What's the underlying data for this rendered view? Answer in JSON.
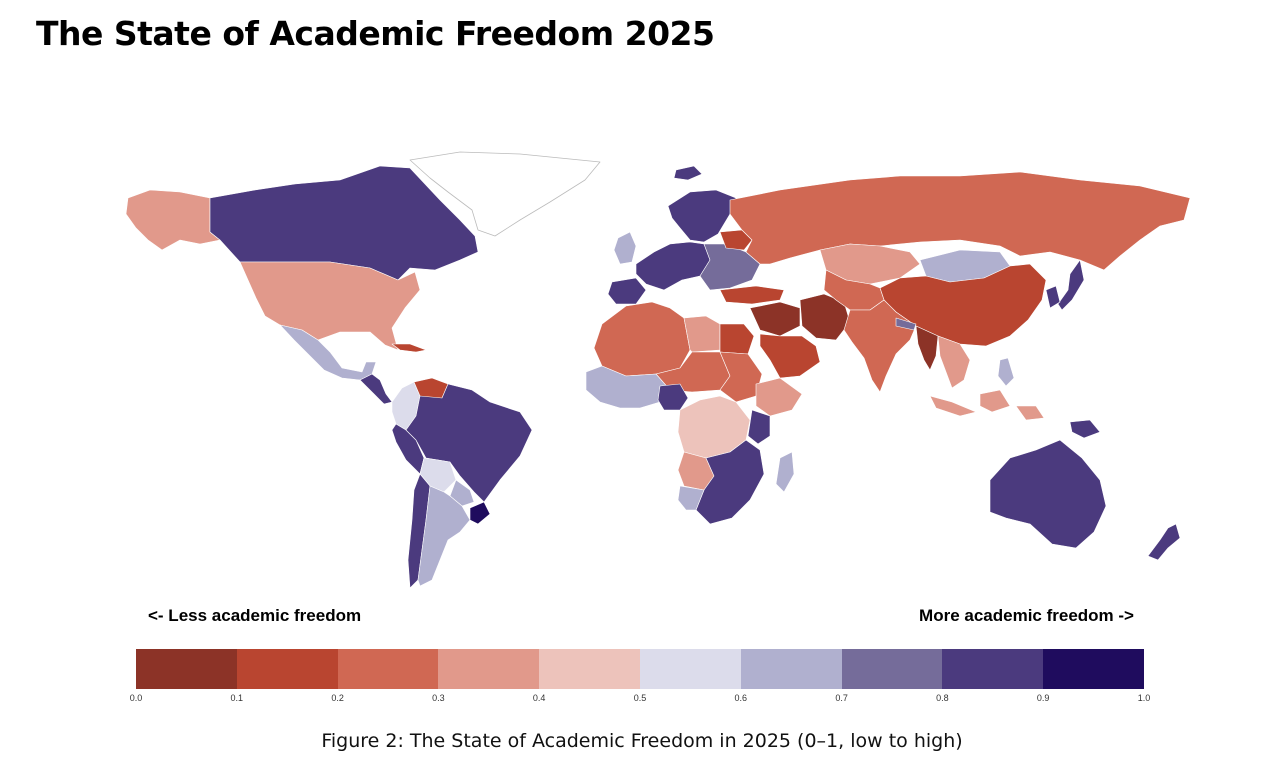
{
  "title": "The State of Academic Freedom 2025",
  "legend": {
    "left_label": "<- Less academic freedom",
    "right_label": "More academic freedom ->",
    "bins": [
      {
        "from": 0.0,
        "to": 0.1,
        "color": "#8c3327"
      },
      {
        "from": 0.1,
        "to": 0.2,
        "color": "#b94530"
      },
      {
        "from": 0.2,
        "to": 0.3,
        "color": "#d06853"
      },
      {
        "from": 0.3,
        "to": 0.4,
        "color": "#e1998b"
      },
      {
        "from": 0.4,
        "to": 0.5,
        "color": "#edc3bb"
      },
      {
        "from": 0.5,
        "to": 0.6,
        "color": "#dcdceb"
      },
      {
        "from": 0.6,
        "to": 0.7,
        "color": "#b0b0cf"
      },
      {
        "from": 0.7,
        "to": 0.8,
        "color": "#756c9a"
      },
      {
        "from": 0.8,
        "to": 0.9,
        "color": "#4b3a7e"
      },
      {
        "from": 0.9,
        "to": 1.0,
        "color": "#1f0c5e"
      }
    ],
    "ticks": [
      "0.0",
      "0.1",
      "0.2",
      "0.3",
      "0.4",
      "0.5",
      "0.6",
      "0.7",
      "0.8",
      "0.9",
      "1.0"
    ]
  },
  "caption": "Figure 2: The State of Academic Freedom in 2025 (0–1, low to high)",
  "regions": [
    {
      "name": "canada",
      "color": "#4b3a7e"
    },
    {
      "name": "alaska",
      "color": "#e1998b"
    },
    {
      "name": "usa",
      "color": "#e1998b"
    },
    {
      "name": "greenland",
      "color": "#ffffff"
    },
    {
      "name": "mexico",
      "color": "#b0b0cf"
    },
    {
      "name": "central-america",
      "color": "#4b3a7e"
    },
    {
      "name": "cuba",
      "color": "#b94530"
    },
    {
      "name": "venezuela",
      "color": "#b94530"
    },
    {
      "name": "colombia",
      "color": "#dcdceb"
    },
    {
      "name": "brazil",
      "color": "#4b3a7e"
    },
    {
      "name": "peru",
      "color": "#4b3a7e"
    },
    {
      "name": "bolivia",
      "color": "#dcdceb"
    },
    {
      "name": "paraguay",
      "color": "#b0b0cf"
    },
    {
      "name": "chile",
      "color": "#4b3a7e"
    },
    {
      "name": "argentina",
      "color": "#b0b0cf"
    },
    {
      "name": "uruguay",
      "color": "#1f0c5e"
    },
    {
      "name": "iceland",
      "color": "#4b3a7e"
    },
    {
      "name": "uk-ireland",
      "color": "#b0b0cf"
    },
    {
      "name": "scandinavia",
      "color": "#4b3a7e"
    },
    {
      "name": "western-europe",
      "color": "#4b3a7e"
    },
    {
      "name": "iberia",
      "color": "#4b3a7e"
    },
    {
      "name": "eastern-europe",
      "color": "#756c9a"
    },
    {
      "name": "belarus",
      "color": "#b94530"
    },
    {
      "name": "russia",
      "color": "#d06853"
    },
    {
      "name": "kazakhstan",
      "color": "#e1998b"
    },
    {
      "name": "mongolia",
      "color": "#b0b0cf"
    },
    {
      "name": "china",
      "color": "#b94530"
    },
    {
      "name": "korea-japan",
      "color": "#4b3a7e"
    },
    {
      "name": "turkey",
      "color": "#b94530"
    },
    {
      "name": "middle-east",
      "color": "#8c3327"
    },
    {
      "name": "iran",
      "color": "#8c3327"
    },
    {
      "name": "saudi-arabia",
      "color": "#b94530"
    },
    {
      "name": "central-asia",
      "color": "#d06853"
    },
    {
      "name": "india",
      "color": "#d06853"
    },
    {
      "name": "nepal",
      "color": "#756c9a"
    },
    {
      "name": "myanmar",
      "color": "#8c3327"
    },
    {
      "name": "southeast-asia",
      "color": "#e1998b"
    },
    {
      "name": "indonesia",
      "color": "#e1998b"
    },
    {
      "name": "philippines",
      "color": "#b0b0cf"
    },
    {
      "name": "png",
      "color": "#4b3a7e"
    },
    {
      "name": "australia",
      "color": "#4b3a7e"
    },
    {
      "name": "new-zealand",
      "color": "#4b3a7e"
    },
    {
      "name": "north-africa-west",
      "color": "#d06853"
    },
    {
      "name": "libya",
      "color": "#e1998b"
    },
    {
      "name": "egypt",
      "color": "#b94530"
    },
    {
      "name": "sahel",
      "color": "#d06853"
    },
    {
      "name": "west-africa",
      "color": "#b0b0cf"
    },
    {
      "name": "nigeria",
      "color": "#4b3a7e"
    },
    {
      "name": "sudan",
      "color": "#d06853"
    },
    {
      "name": "ethiopia-horn",
      "color": "#e1998b"
    },
    {
      "name": "central-africa",
      "color": "#edc3bb"
    },
    {
      "name": "kenya",
      "color": "#4b3a7e"
    },
    {
      "name": "angola",
      "color": "#e1998b"
    },
    {
      "name": "southern-africa",
      "color": "#4b3a7e"
    },
    {
      "name": "namibia",
      "color": "#b0b0cf"
    },
    {
      "name": "madagascar",
      "color": "#b0b0cf"
    }
  ]
}
